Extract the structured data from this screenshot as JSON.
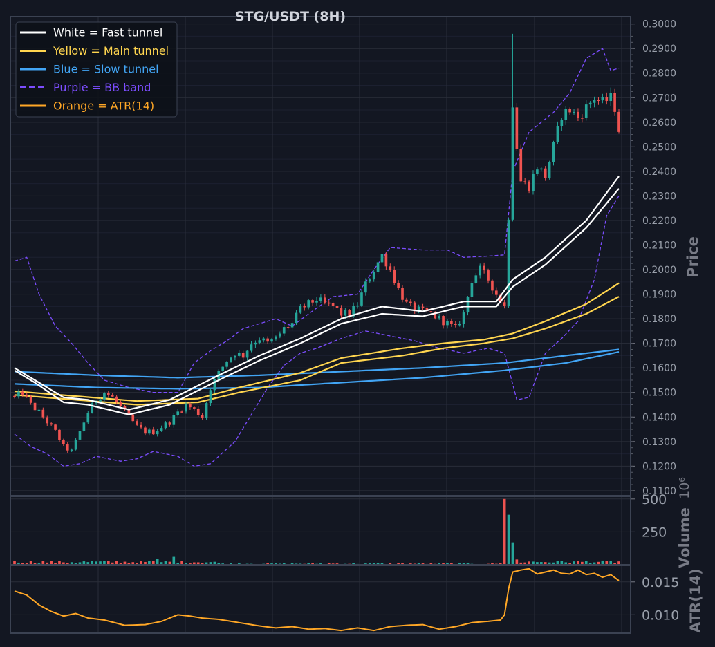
{
  "chart_data": {
    "type": "candlestick",
    "title": "STG/USDT (8H)",
    "timeframe": "8H",
    "background_color": "#131722",
    "grid": true,
    "legend_position": "top-left",
    "legend": [
      {
        "label": "White = Fast tunnel",
        "color": "#ffffff",
        "style": "solid"
      },
      {
        "label": "Yellow = Main tunnel",
        "color": "#ffd54f",
        "style": "solid"
      },
      {
        "label": "Blue = Slow tunnel",
        "color": "#42a5f5",
        "style": "solid"
      },
      {
        "label": "Purple = BB band",
        "color": "#7c4dff",
        "style": "dashed"
      },
      {
        "label": "Orange = ATR(14)",
        "color": "#ffa726",
        "style": "solid"
      }
    ],
    "up_color": "#26a69a",
    "down_color": "#ef5350",
    "price_panel": {
      "ylabel": "Price",
      "ylim": [
        0.108,
        0.303
      ],
      "tick_labels": [
        "0.1100",
        "0.1200",
        "0.1300",
        "0.1400",
        "0.1500",
        "0.1600",
        "0.1700",
        "0.1800",
        "0.1900",
        "0.2000",
        "0.2100",
        "0.2200",
        "0.2300",
        "0.2400",
        "0.2500",
        "0.2600",
        "0.2700",
        "0.2800",
        "0.2900",
        "0.3000"
      ],
      "candle_anchors_close": [
        [
          0,
          0.148
        ],
        [
          2,
          0.15
        ],
        [
          4,
          0.145
        ],
        [
          6,
          0.142
        ],
        [
          8,
          0.138
        ],
        [
          10,
          0.134
        ],
        [
          12,
          0.128
        ],
        [
          14,
          0.126
        ],
        [
          16,
          0.134
        ],
        [
          18,
          0.142
        ],
        [
          20,
          0.147
        ],
        [
          22,
          0.15
        ],
        [
          24,
          0.148
        ],
        [
          26,
          0.144
        ],
        [
          28,
          0.14
        ],
        [
          30,
          0.136
        ],
        [
          32,
          0.134
        ],
        [
          34,
          0.134
        ],
        [
          36,
          0.136
        ],
        [
          38,
          0.138
        ],
        [
          40,
          0.142
        ],
        [
          42,
          0.145
        ],
        [
          44,
          0.143
        ],
        [
          46,
          0.14
        ],
        [
          48,
          0.152
        ],
        [
          50,
          0.158
        ],
        [
          52,
          0.163
        ],
        [
          54,
          0.166
        ],
        [
          56,
          0.165
        ],
        [
          58,
          0.17
        ],
        [
          60,
          0.172
        ],
        [
          62,
          0.17
        ],
        [
          64,
          0.172
        ],
        [
          66,
          0.176
        ],
        [
          68,
          0.178
        ],
        [
          70,
          0.184
        ],
        [
          72,
          0.186
        ],
        [
          74,
          0.188
        ],
        [
          76,
          0.186
        ],
        [
          78,
          0.185
        ],
        [
          80,
          0.182
        ],
        [
          82,
          0.182
        ],
        [
          84,
          0.186
        ],
        [
          86,
          0.194
        ],
        [
          88,
          0.2
        ],
        [
          90,
          0.206
        ],
        [
          92,
          0.2
        ],
        [
          94,
          0.192
        ],
        [
          96,
          0.186
        ],
        [
          98,
          0.184
        ],
        [
          100,
          0.183
        ],
        [
          102,
          0.182
        ],
        [
          104,
          0.18
        ],
        [
          106,
          0.178
        ],
        [
          108,
          0.176
        ],
        [
          110,
          0.182
        ],
        [
          112,
          0.196
        ],
        [
          114,
          0.2
        ],
        [
          116,
          0.196
        ],
        [
          118,
          0.19
        ],
        [
          120,
          0.185
        ],
        [
          121,
          0.222
        ],
        [
          122,
          0.268
        ],
        [
          123,
          0.25
        ],
        [
          124,
          0.236
        ],
        [
          126,
          0.234
        ],
        [
          128,
          0.242
        ],
        [
          130,
          0.238
        ],
        [
          132,
          0.25
        ],
        [
          134,
          0.263
        ],
        [
          136,
          0.265
        ],
        [
          138,
          0.262
        ],
        [
          140,
          0.266
        ],
        [
          142,
          0.27
        ],
        [
          144,
          0.268
        ],
        [
          146,
          0.27
        ],
        [
          147,
          0.266
        ],
        [
          148,
          0.257
        ]
      ],
      "fast_tunnel": {
        "upper": [
          [
            0,
            0.16
          ],
          [
            5,
            0.155
          ],
          [
            12,
            0.148
          ],
          [
            18,
            0.147
          ],
          [
            28,
            0.143
          ],
          [
            38,
            0.147
          ],
          [
            50,
            0.157
          ],
          [
            60,
            0.165
          ],
          [
            70,
            0.172
          ],
          [
            80,
            0.18
          ],
          [
            90,
            0.185
          ],
          [
            100,
            0.183
          ],
          [
            110,
            0.187
          ],
          [
            118,
            0.187
          ],
          [
            122,
            0.196
          ],
          [
            130,
            0.205
          ],
          [
            140,
            0.22
          ],
          [
            148,
            0.238
          ]
        ],
        "lower": [
          [
            0,
            0.159
          ],
          [
            5,
            0.154
          ],
          [
            12,
            0.146
          ],
          [
            18,
            0.145
          ],
          [
            28,
            0.141
          ],
          [
            38,
            0.145
          ],
          [
            50,
            0.155
          ],
          [
            60,
            0.163
          ],
          [
            70,
            0.17
          ],
          [
            80,
            0.178
          ],
          [
            90,
            0.182
          ],
          [
            100,
            0.181
          ],
          [
            110,
            0.185
          ],
          [
            118,
            0.185
          ],
          [
            122,
            0.193
          ],
          [
            130,
            0.202
          ],
          [
            140,
            0.217
          ],
          [
            148,
            0.233
          ]
        ]
      },
      "main_tunnel": {
        "upper": [
          [
            0,
            0.1505
          ],
          [
            15,
            0.1485
          ],
          [
            30,
            0.1465
          ],
          [
            45,
            0.1475
          ],
          [
            55,
            0.152
          ],
          [
            70,
            0.158
          ],
          [
            80,
            0.164
          ],
          [
            95,
            0.168
          ],
          [
            105,
            0.17
          ],
          [
            115,
            0.1715
          ],
          [
            122,
            0.174
          ],
          [
            130,
            0.179
          ],
          [
            140,
            0.186
          ],
          [
            148,
            0.1945
          ]
        ],
        "lower": [
          [
            0,
            0.149
          ],
          [
            15,
            0.147
          ],
          [
            30,
            0.145
          ],
          [
            45,
            0.146
          ],
          [
            55,
            0.15
          ],
          [
            70,
            0.155
          ],
          [
            80,
            0.162
          ],
          [
            95,
            0.165
          ],
          [
            105,
            0.168
          ],
          [
            115,
            0.17
          ],
          [
            122,
            0.172
          ],
          [
            130,
            0.176
          ],
          [
            140,
            0.182
          ],
          [
            148,
            0.189
          ]
        ]
      },
      "slow_tunnel": {
        "upper": [
          [
            0,
            0.1585
          ],
          [
            20,
            0.157
          ],
          [
            40,
            0.156
          ],
          [
            60,
            0.157
          ],
          [
            80,
            0.1585
          ],
          [
            100,
            0.16
          ],
          [
            120,
            0.162
          ],
          [
            135,
            0.165
          ],
          [
            148,
            0.1675
          ]
        ],
        "lower": [
          [
            0,
            0.1535
          ],
          [
            20,
            0.152
          ],
          [
            40,
            0.1515
          ],
          [
            60,
            0.152
          ],
          [
            80,
            0.154
          ],
          [
            100,
            0.156
          ],
          [
            120,
            0.159
          ],
          [
            135,
            0.162
          ],
          [
            148,
            0.1665
          ]
        ]
      },
      "bb_band": {
        "upper": [
          [
            0,
            0.2035
          ],
          [
            3,
            0.205
          ],
          [
            6,
            0.19
          ],
          [
            10,
            0.177
          ],
          [
            14,
            0.17
          ],
          [
            18,
            0.162
          ],
          [
            22,
            0.155
          ],
          [
            28,
            0.152
          ],
          [
            34,
            0.15
          ],
          [
            40,
            0.15
          ],
          [
            44,
            0.162
          ],
          [
            48,
            0.167
          ],
          [
            52,
            0.171
          ],
          [
            56,
            0.176
          ],
          [
            60,
            0.178
          ],
          [
            64,
            0.18
          ],
          [
            68,
            0.177
          ],
          [
            72,
            0.182
          ],
          [
            78,
            0.189
          ],
          [
            84,
            0.19
          ],
          [
            88,
            0.2
          ],
          [
            92,
            0.209
          ],
          [
            100,
            0.208
          ],
          [
            106,
            0.208
          ],
          [
            110,
            0.205
          ],
          [
            116,
            0.2055
          ],
          [
            120,
            0.206
          ],
          [
            122,
            0.24
          ],
          [
            126,
            0.256
          ],
          [
            132,
            0.264
          ],
          [
            136,
            0.272
          ],
          [
            140,
            0.286
          ],
          [
            144,
            0.29
          ],
          [
            146,
            0.281
          ],
          [
            148,
            0.282
          ]
        ],
        "lower": [
          [
            0,
            0.133
          ],
          [
            4,
            0.128
          ],
          [
            8,
            0.125
          ],
          [
            12,
            0.12
          ],
          [
            16,
            0.121
          ],
          [
            20,
            0.124
          ],
          [
            26,
            0.122
          ],
          [
            30,
            0.123
          ],
          [
            34,
            0.126
          ],
          [
            40,
            0.124
          ],
          [
            44,
            0.12
          ],
          [
            48,
            0.121
          ],
          [
            54,
            0.13
          ],
          [
            58,
            0.141
          ],
          [
            62,
            0.152
          ],
          [
            66,
            0.161
          ],
          [
            70,
            0.166
          ],
          [
            74,
            0.168
          ],
          [
            80,
            0.172
          ],
          [
            86,
            0.175
          ],
          [
            92,
            0.173
          ],
          [
            98,
            0.171
          ],
          [
            104,
            0.168
          ],
          [
            110,
            0.166
          ],
          [
            116,
            0.168
          ],
          [
            120,
            0.166
          ],
          [
            123,
            0.147
          ],
          [
            126,
            0.148
          ],
          [
            130,
            0.166
          ],
          [
            134,
            0.172
          ],
          [
            138,
            0.179
          ],
          [
            142,
            0.196
          ],
          [
            145,
            0.222
          ],
          [
            148,
            0.23
          ]
        ]
      }
    },
    "volume_panel": {
      "ylabel": "Volume",
      "scale_label": "10⁶",
      "ylim": [
        0,
        520
      ],
      "tick_labels": [
        "250",
        "500"
      ],
      "spikes": [
        [
          35,
          45
        ],
        [
          39,
          60
        ],
        [
          120,
          500
        ],
        [
          121,
          380
        ],
        [
          122,
          170
        ],
        [
          123,
          40
        ]
      ]
    },
    "atr_panel": {
      "ylabel": "ATR(14)",
      "ylim": [
        0.0072,
        0.0175
      ],
      "tick_labels": [
        "0.010",
        "0.015"
      ],
      "series": [
        [
          0,
          0.0136
        ],
        [
          3,
          0.013
        ],
        [
          6,
          0.0115
        ],
        [
          9,
          0.0105
        ],
        [
          12,
          0.0098
        ],
        [
          15,
          0.0102
        ],
        [
          18,
          0.0095
        ],
        [
          22,
          0.0092
        ],
        [
          27,
          0.0084
        ],
        [
          32,
          0.0085
        ],
        [
          36,
          0.009
        ],
        [
          40,
          0.01
        ],
        [
          43,
          0.0098
        ],
        [
          46,
          0.0095
        ],
        [
          50,
          0.0093
        ],
        [
          53,
          0.009
        ],
        [
          56,
          0.0087
        ],
        [
          60,
          0.0083
        ],
        [
          64,
          0.008
        ],
        [
          68,
          0.0082
        ],
        [
          72,
          0.0078
        ],
        [
          76,
          0.0079
        ],
        [
          80,
          0.0076
        ],
        [
          84,
          0.008
        ],
        [
          88,
          0.0076
        ],
        [
          92,
          0.0082
        ],
        [
          96,
          0.0084
        ],
        [
          100,
          0.0085
        ],
        [
          104,
          0.0078
        ],
        [
          108,
          0.0082
        ],
        [
          112,
          0.0088
        ],
        [
          116,
          0.009
        ],
        [
          119,
          0.0092
        ],
        [
          120,
          0.01
        ],
        [
          121,
          0.014
        ],
        [
          122,
          0.0165
        ],
        [
          124,
          0.0168
        ],
        [
          126,
          0.017
        ],
        [
          128,
          0.0162
        ],
        [
          130,
          0.0165
        ],
        [
          132,
          0.0168
        ],
        [
          134,
          0.0163
        ],
        [
          136,
          0.0162
        ],
        [
          138,
          0.0168
        ],
        [
          140,
          0.0161
        ],
        [
          142,
          0.0163
        ],
        [
          144,
          0.0157
        ],
        [
          146,
          0.0161
        ],
        [
          148,
          0.0152
        ]
      ]
    }
  }
}
